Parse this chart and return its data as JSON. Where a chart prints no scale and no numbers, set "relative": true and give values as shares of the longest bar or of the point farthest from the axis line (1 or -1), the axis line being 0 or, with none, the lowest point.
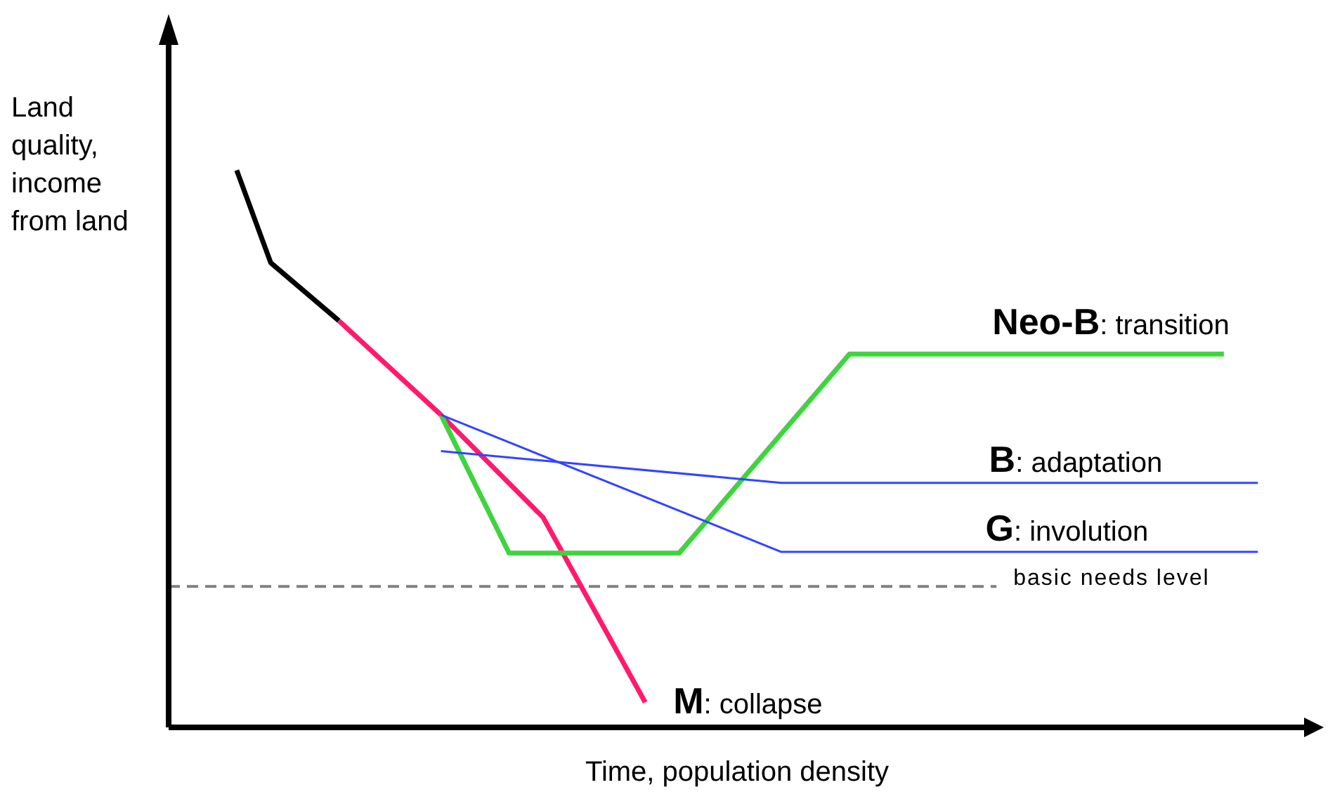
{
  "chart_data": {
    "type": "line",
    "relative": true,
    "xlabel": "Time, population density",
    "ylabel": "Land quality, income from land",
    "categories": [
      null,
      null,
      null,
      null,
      null,
      null,
      null,
      null,
      null,
      null,
      null,
      null,
      null,
      null,
      null,
      null,
      null,
      null,
      null,
      null,
      null,
      null,
      null,
      null,
      null,
      null,
      null,
      null,
      null,
      null,
      null,
      null,
      null
    ],
    "series": [
      {
        "color": "#000000",
        "values": [
          null,
          null,
          1,
          0.834,
          null,
          0.73,
          null,
          null,
          null,
          null,
          null,
          null,
          null,
          null,
          null,
          null,
          null,
          null,
          null,
          null,
          null,
          null,
          null,
          null,
          null,
          null,
          null,
          null,
          null,
          null,
          null,
          null,
          null
        ]
      },
      {
        "name": "M: collapse",
        "color": "#ff1a6e",
        "values": [
          null,
          null,
          null,
          null,
          null,
          0.73,
          null,
          null,
          0.561,
          null,
          null,
          0.377,
          null,
          null,
          0.045,
          null,
          null,
          null,
          null,
          null,
          null,
          null,
          null,
          null,
          null,
          null,
          null,
          null,
          null,
          null,
          null,
          null,
          null
        ]
      },
      {
        "name": "Neo-B: transition",
        "color": "#3fd43f",
        "values": [
          null,
          null,
          null,
          null,
          null,
          null,
          null,
          null,
          0.561,
          null,
          0.313,
          null,
          null,
          null,
          null,
          0.313,
          null,
          null,
          null,
          null,
          0.67,
          null,
          null,
          null,
          null,
          null,
          null,
          null,
          null,
          null,
          null,
          0.67,
          null
        ]
      },
      {
        "name": "B: adaptation",
        "color": "#3344ff",
        "values": [
          null,
          null,
          null,
          null,
          null,
          null,
          null,
          null,
          0.496,
          null,
          null,
          null,
          null,
          null,
          null,
          null,
          null,
          null,
          0.439,
          null,
          null,
          null,
          null,
          null,
          null,
          null,
          null,
          null,
          null,
          null,
          null,
          null,
          0.439
        ]
      },
      {
        "name": "G: involution",
        "color": "#3344ff",
        "values": [
          null,
          null,
          null,
          null,
          null,
          null,
          null,
          null,
          0.561,
          null,
          null,
          null,
          null,
          null,
          null,
          null,
          null,
          null,
          0.315,
          null,
          null,
          null,
          null,
          null,
          null,
          null,
          null,
          null,
          null,
          null,
          null,
          null,
          0.315
        ]
      }
    ],
    "ref_lines": [
      {
        "axis": "y",
        "value": 0.253,
        "label": "basic needs level",
        "color": "#808080",
        "line_style": "dashed"
      }
    ]
  }
}
